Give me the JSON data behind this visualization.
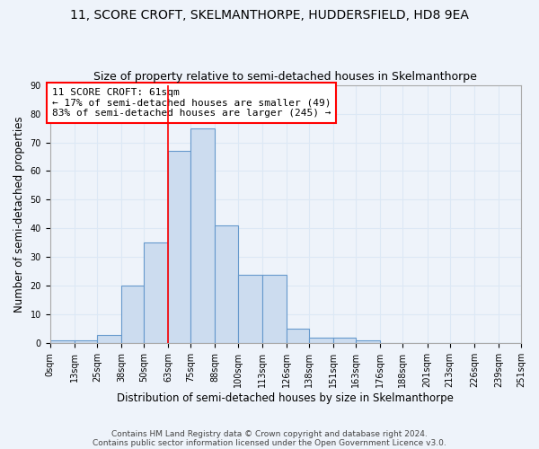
{
  "title": "11, SCORE CROFT, SKELMANTHORPE, HUDDERSFIELD, HD8 9EA",
  "subtitle": "Size of property relative to semi-detached houses in Skelmanthorpe",
  "xlabel": "Distribution of semi-detached houses by size in Skelmanthorpe",
  "ylabel": "Number of semi-detached properties",
  "footer_lines": [
    "Contains HM Land Registry data © Crown copyright and database right 2024.",
    "Contains public sector information licensed under the Open Government Licence v3.0."
  ],
  "bin_edges": [
    0,
    13,
    25,
    38,
    50,
    63,
    75,
    88,
    100,
    113,
    126,
    138,
    151,
    163,
    176,
    188,
    201,
    213,
    226,
    239,
    251
  ],
  "bar_heights": [
    1,
    1,
    3,
    20,
    35,
    67,
    75,
    41,
    24,
    24,
    5,
    2,
    2,
    1,
    0,
    0,
    0,
    0,
    0,
    0
  ],
  "bar_color": "#ccdcef",
  "bar_edge_color": "#6699cc",
  "red_line_x": 63,
  "annotation_text": "11 SCORE CROFT: 61sqm\n← 17% of semi-detached houses are smaller (49)\n83% of semi-detached houses are larger (245) →",
  "annotation_box_color": "white",
  "annotation_box_edge": "red",
  "ylim": [
    0,
    90
  ],
  "yticks": [
    0,
    10,
    20,
    30,
    40,
    50,
    60,
    70,
    80,
    90
  ],
  "grid_color": "#dce8f5",
  "background_color": "#eef3fa",
  "title_fontsize": 10,
  "subtitle_fontsize": 9,
  "tick_label_fontsize": 7,
  "axis_label_fontsize": 8.5,
  "annotation_fontsize": 8
}
